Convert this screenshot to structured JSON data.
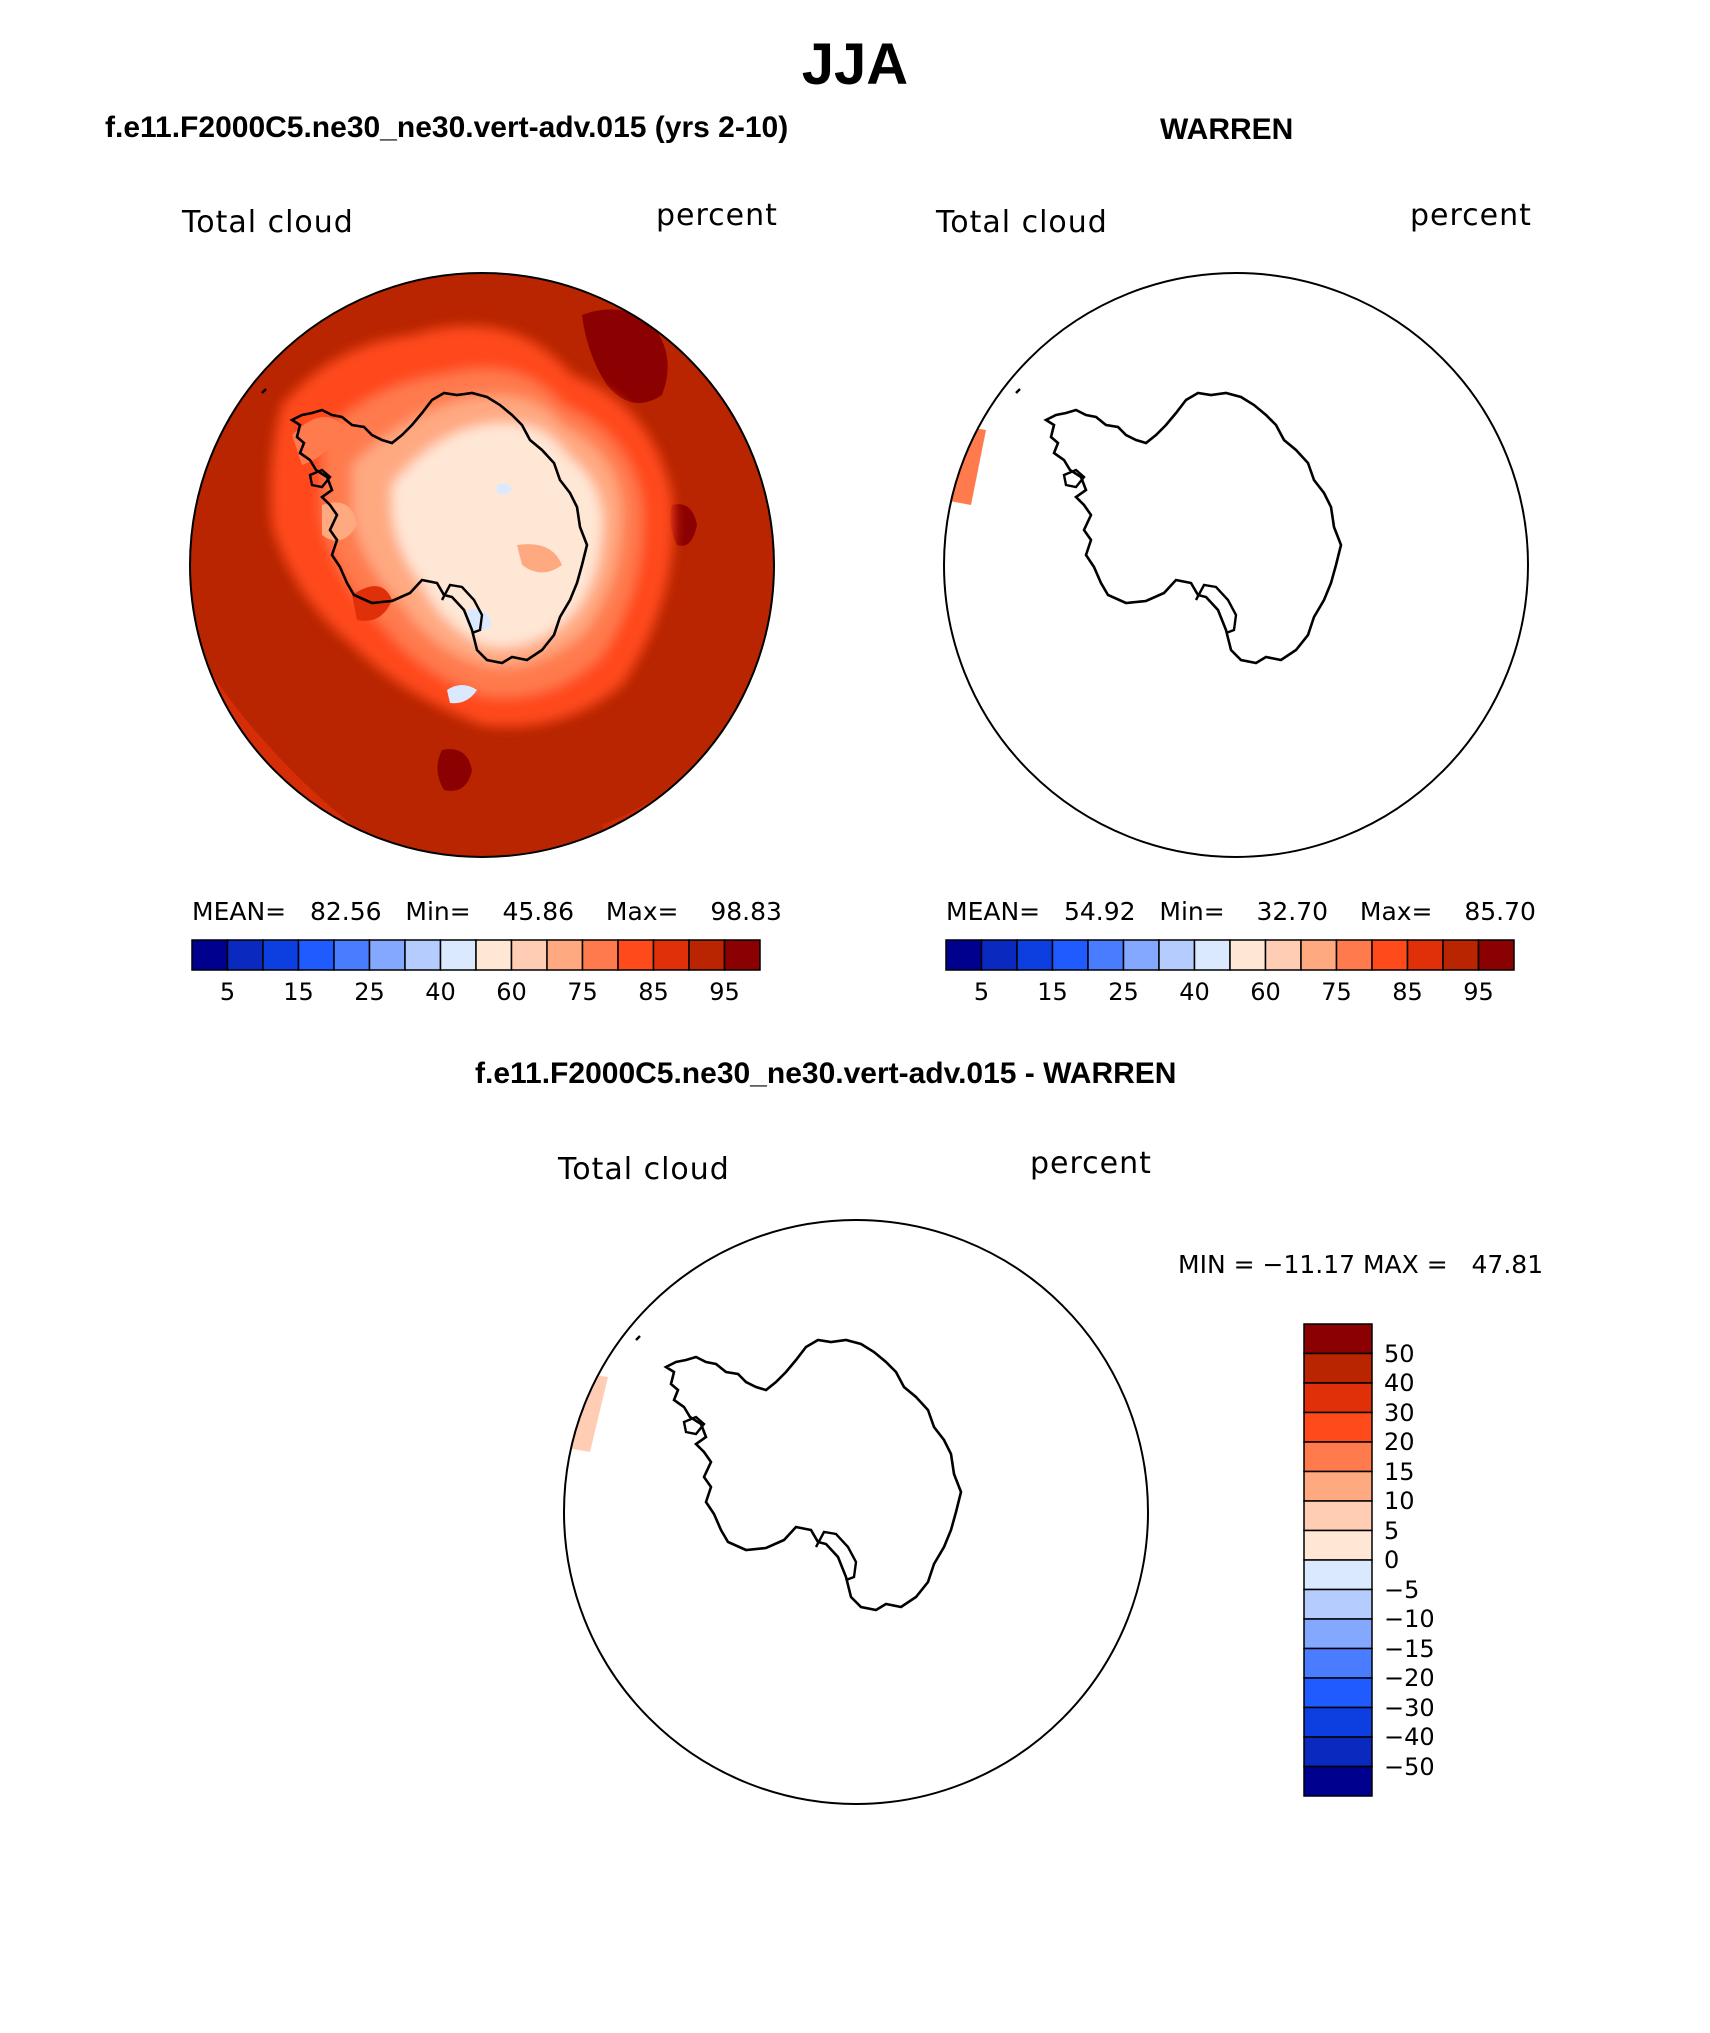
{
  "figure": {
    "title": "JJA"
  },
  "panels": {
    "model": {
      "title": "f.e11.F2000C5.ne30_ne30.vert-adv.015 (yrs 2-10)",
      "var_label": "Total cloud",
      "units": "percent",
      "stats": {
        "mean_label": "MEAN=",
        "mean": "82.56",
        "min_label": "Min=",
        "min": "45.86",
        "max_label": "Max=",
        "max": "98.83"
      },
      "map_fill": "mostly cloudy ocean (85–98%), lower values (40–75%) over the Antarctic interior"
    },
    "obs": {
      "title": "WARREN",
      "var_label": "Total cloud",
      "units": "percent",
      "stats": {
        "mean_label": "MEAN=",
        "mean": "54.92",
        "min_label": "Min=",
        "min": "32.70",
        "max_label": "Max=",
        "max": "85.70"
      }
    },
    "diff": {
      "title": "f.e11.F2000C5.ne30_ne30.vert-adv.015 - WARREN",
      "var_label": "Total cloud",
      "units": "percent",
      "stats": {
        "min_label": "MIN =",
        "min": "−11.17",
        "max_label": "MAX =",
        "max": "47.81"
      }
    }
  },
  "colorbars": {
    "abs": {
      "colors": [
        "#00008f",
        "#0a2abf",
        "#0d3fe0",
        "#1f5bff",
        "#4a7cff",
        "#85a8ff",
        "#b5ccff",
        "#dbe9ff",
        "#ffe7d6",
        "#ffcdb3",
        "#ffa981",
        "#ff7a4d",
        "#ff4a1c",
        "#e0300a",
        "#b82500",
        "#8b0000"
      ],
      "tick_labels": [
        "5",
        "15",
        "25",
        "40",
        "60",
        "75",
        "85",
        "95"
      ]
    },
    "diff": {
      "colors_top_to_bottom": [
        "#8b0000",
        "#b82500",
        "#e0300a",
        "#ff4a1c",
        "#ff7a4d",
        "#ffa981",
        "#ffcdb3",
        "#ffe7d6",
        "#dbe9ff",
        "#b5ccff",
        "#85a8ff",
        "#4a7cff",
        "#1f5bff",
        "#0d3fe0",
        "#0a2abf",
        "#00008f"
      ],
      "tick_labels": [
        "50",
        "40",
        "30",
        "20",
        "15",
        "10",
        "5",
        "0",
        "−5",
        "−10",
        "−15",
        "−20",
        "−30",
        "−40",
        "−50"
      ]
    }
  },
  "colors": {
    "ocean_fill": "#b82500",
    "coastline": "#000000"
  }
}
